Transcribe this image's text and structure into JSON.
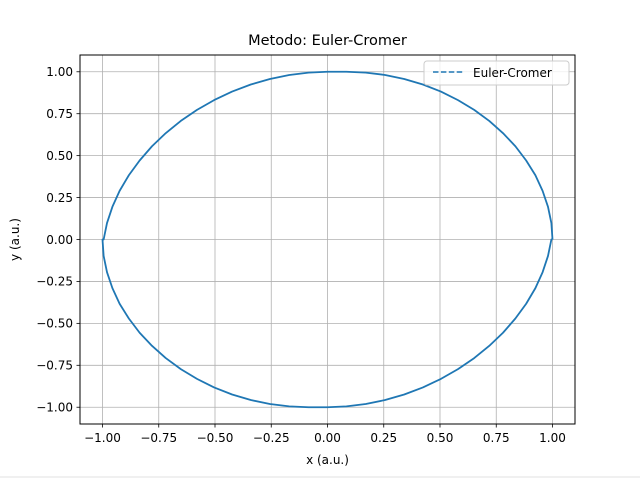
{
  "chart_data": {
    "type": "line",
    "title": "Metodo: Euler-Cromer",
    "xlabel": "x (a.u.)",
    "ylabel": "y (a.u.)",
    "xlim": [
      -1.1,
      1.1
    ],
    "ylim": [
      -1.1,
      1.1
    ],
    "xticks": [
      -1.0,
      -0.75,
      -0.5,
      -0.25,
      0.0,
      0.25,
      0.5,
      0.75,
      1.0
    ],
    "yticks": [
      -1.0,
      -0.75,
      -0.5,
      -0.25,
      0.0,
      0.25,
      0.5,
      0.75,
      1.0
    ],
    "xtick_labels": [
      "−1.00",
      "−0.75",
      "−0.50",
      "−0.25",
      "0.00",
      "0.25",
      "0.50",
      "0.75",
      "1.00"
    ],
    "ytick_labels": [
      "−1.00",
      "−0.75",
      "−0.50",
      "−0.25",
      "0.00",
      "0.25",
      "0.50",
      "0.75",
      "1.00"
    ],
    "grid": true,
    "legend_position": "upper right",
    "series": [
      {
        "name": "Euler-Cromer",
        "color": "#1f77b4",
        "linestyle": "dashed",
        "x": [
          1.0,
          0.995,
          0.98,
          0.956,
          0.924,
          0.883,
          0.835,
          0.78,
          0.719,
          0.652,
          0.58,
          0.504,
          0.424,
          0.341,
          0.256,
          0.17,
          0.084,
          0.0,
          -0.084,
          -0.17,
          -0.256,
          -0.341,
          -0.424,
          -0.504,
          -0.58,
          -0.652,
          -0.719,
          -0.78,
          -0.835,
          -0.883,
          -0.924,
          -0.956,
          -0.98,
          -0.995,
          -1.0,
          -0.995,
          -0.98,
          -0.956,
          -0.924,
          -0.883,
          -0.835,
          -0.78,
          -0.719,
          -0.652,
          -0.58,
          -0.504,
          -0.424,
          -0.341,
          -0.256,
          -0.17,
          -0.084,
          0.0,
          0.084,
          0.17,
          0.256,
          0.341,
          0.424,
          0.504,
          0.58,
          0.652,
          0.719,
          0.78,
          0.835,
          0.883,
          0.924,
          0.956,
          0.98,
          0.995,
          1.0
        ],
        "y": [
          0.0,
          0.098,
          0.195,
          0.29,
          0.383,
          0.471,
          0.556,
          0.634,
          0.707,
          0.773,
          0.831,
          0.882,
          0.924,
          0.957,
          0.981,
          0.995,
          1.0,
          1.0,
          0.995,
          0.981,
          0.957,
          0.924,
          0.882,
          0.831,
          0.773,
          0.707,
          0.634,
          0.556,
          0.471,
          0.383,
          0.29,
          0.195,
          0.098,
          0.0,
          0.0,
          -0.098,
          -0.195,
          -0.29,
          -0.383,
          -0.471,
          -0.556,
          -0.634,
          -0.707,
          -0.773,
          -0.831,
          -0.882,
          -0.924,
          -0.957,
          -0.981,
          -0.995,
          -1.0,
          -1.0,
          -0.995,
          -0.981,
          -0.957,
          -0.924,
          -0.882,
          -0.831,
          -0.773,
          -0.707,
          -0.634,
          -0.556,
          -0.471,
          -0.383,
          -0.29,
          -0.195,
          -0.098,
          0.0,
          0.0
        ]
      }
    ]
  }
}
